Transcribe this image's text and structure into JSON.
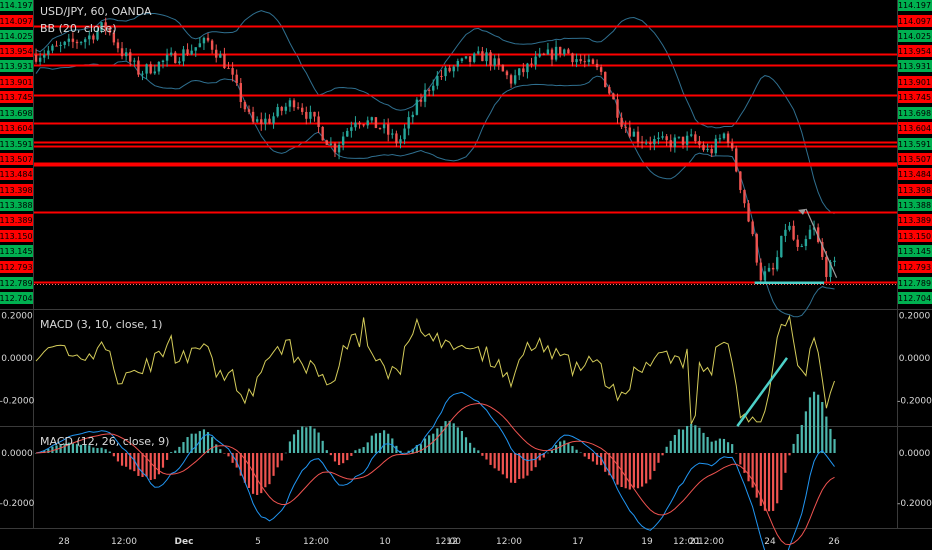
{
  "chart_data": [
    {
      "type": "candlestick",
      "pane": "price",
      "title": "USD/JPY, 60, OANDA",
      "indicator": "BB (20, close)",
      "price_levels": [
        114.197,
        114.097,
        114.025,
        113.954,
        113.931,
        113.901,
        113.745,
        113.698,
        113.604,
        113.591,
        113.507,
        113.484,
        113.398,
        113.388,
        113.389,
        113.15,
        113.145,
        112.793,
        112.789,
        112.704
      ],
      "price_level_labels": [
        "114.197",
        "114.097",
        "114.025",
        "113.954",
        "113.931",
        "113.901",
        "113.745",
        "113.698",
        "113.604",
        "113.591",
        "113.507",
        "113.484",
        "113.398",
        "113.388",
        "113.389",
        "113.150",
        "113.145",
        "112.793",
        "112.789",
        "112.704"
      ],
      "horizontal_levels": [
        114.097,
        113.954,
        113.901,
        113.745,
        113.604,
        113.507,
        113.484,
        113.398,
        113.389,
        113.15,
        112.793
      ],
      "support_level": 112.789,
      "colors": {
        "up": "#26a69a",
        "down": "#ef5350",
        "bb": "#2f6f8f",
        "levels": "#ff0000",
        "label_red": "#ff0000",
        "label_green": "#00b050",
        "support_line": "#4dd0c8",
        "arrow": "#9e9e9e"
      }
    },
    {
      "type": "line",
      "pane": "macd_fast",
      "title": "MACD (3, 10, close, 1)",
      "y_ticks": [
        0.2,
        0.0,
        -0.2
      ],
      "y_tick_labels": [
        "0.2000",
        "0.0000",
        "-0.2000"
      ],
      "trendline_from": -0.32,
      "trendline_to": 0.0,
      "colors": {
        "line": "#d4cc5a",
        "trend": "#4dd0c8"
      }
    },
    {
      "type": "bar",
      "pane": "macd_standard",
      "title": "MACD (12, 26, close, 9)",
      "y_ticks": [
        0.0,
        -0.2
      ],
      "y_tick_labels": [
        "0.0000",
        "-0.2000"
      ],
      "colors": {
        "macd": "#2196f3",
        "signal": "#ef5350",
        "hist_up": "#4db6ac",
        "hist_down": "#ef5350"
      }
    }
  ],
  "x_tick_labels": [
    "28",
    "12:00",
    "Dec",
    "5",
    "12:00",
    "10",
    "12:00",
    "12",
    "12:00",
    "17",
    "19",
    "12:00",
    "21",
    "12:00",
    "24",
    "26"
  ]
}
